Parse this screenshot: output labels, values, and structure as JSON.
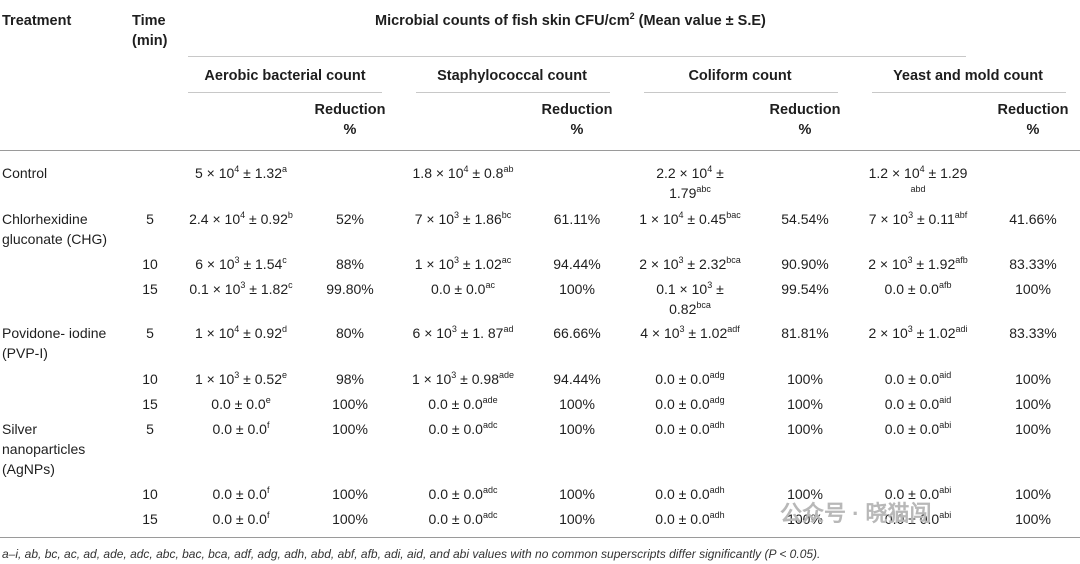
{
  "header": {
    "treatment": "Treatment",
    "time_l1": "Time",
    "time_l2": "(min)",
    "main_pre": "Microbial counts of fish skin CFU/cm",
    "main_sup": "2",
    "main_post": " (Mean value ± S.E)",
    "groups": [
      "Aerobic bacterial count",
      "Staphylococcal count",
      "Coliform count",
      "Yeast and mold count"
    ],
    "reduction_l1": "Reduction",
    "reduction_l2": "%"
  },
  "treatments": {
    "control": "Control",
    "chg_l1": "Chlorhexidine",
    "chg_l2": "gluconate (CHG)",
    "pvp_l1": "Povidone- iodine",
    "pvp_l2": "(PVP-I)",
    "ag_l1": "Silver",
    "ag_l2": "nanoparticles",
    "ag_l3": "(AgNPs)"
  },
  "rows": [
    {
      "time": "",
      "cells": [
        {
          "v": "5 × 10",
          "e": "4",
          "r": " ± 1.32",
          "s": "a",
          "red": ""
        },
        {
          "v": "1.8 × 10",
          "e": "4",
          "r": " ± 0.8",
          "s": "ab",
          "red": ""
        },
        {
          "v": "2.2 × 10",
          "e": "4",
          "r": " ±",
          "s": "",
          "red": "",
          "l2": "1.79",
          "s2": "abc"
        },
        {
          "v": "1.2 × 10",
          "e": "4",
          "r": " ± 1.29",
          "s": "",
          "red": "",
          "l2": "",
          "s2": "abd"
        }
      ]
    },
    {
      "time": "5",
      "cells": [
        {
          "v": "2.4 × 10",
          "e": "4",
          "r": " ± 0.92",
          "s": "b",
          "red": "52%"
        },
        {
          "v": "7 × 10",
          "e": "3",
          "r": " ± 1.86",
          "s": "bc",
          "red": "61.11%"
        },
        {
          "v": "1 × 10",
          "e": "4",
          "r": " ± 0.45",
          "s": "bac",
          "red": "54.54%"
        },
        {
          "v": "7 × 10",
          "e": "3",
          "r": " ± 0.11",
          "s": "abf",
          "red": "41.66%"
        }
      ]
    },
    {
      "time": "10",
      "cells": [
        {
          "v": "6 × 10",
          "e": "3",
          "r": " ± 1.54",
          "s": "c",
          "red": "88%"
        },
        {
          "v": "1 × 10",
          "e": "3",
          "r": " ± 1.02",
          "s": "ac",
          "red": "94.44%"
        },
        {
          "v": "2 × 10",
          "e": "3",
          "r": " ± 2.32",
          "s": "bca",
          "red": "90.90%"
        },
        {
          "v": "2 × 10",
          "e": "3",
          "r": " ± 1.92",
          "s": "afb",
          "red": "83.33%"
        }
      ]
    },
    {
      "time": "15",
      "cells": [
        {
          "v": "0.1 × 10",
          "e": "3",
          "r": " ± 1.82",
          "s": "c",
          "red": "99.80%"
        },
        {
          "v": "0.0 ± 0.0",
          "e": "",
          "r": "",
          "s": "ac",
          "red": "100%"
        },
        {
          "v": "0.1 × 10",
          "e": "3",
          "r": " ±",
          "s": "",
          "red": "99.54%",
          "l2": "0.82",
          "s2": "bca"
        },
        {
          "v": "0.0 ± 0.0",
          "e": "",
          "r": "",
          "s": "afb",
          "red": "100%"
        }
      ]
    },
    {
      "time": "5",
      "cells": [
        {
          "v": "1 × 10",
          "e": "4",
          "r": " ± 0.92",
          "s": "d",
          "red": "80%"
        },
        {
          "v": "6 × 10",
          "e": "3",
          "r": " ± 1. 87",
          "s": "ad",
          "red": "66.66%"
        },
        {
          "v": "4 × 10",
          "e": "3",
          "r": " ± 1.02",
          "s": "adf",
          "red": "81.81%"
        },
        {
          "v": "2 × 10",
          "e": "3",
          "r": " ± 1.02",
          "s": "adi",
          "red": "83.33%"
        }
      ]
    },
    {
      "time": "10",
      "cells": [
        {
          "v": "1 × 10",
          "e": "3",
          "r": " ± 0.52",
          "s": "e",
          "red": "98%"
        },
        {
          "v": "1 × 10",
          "e": "3",
          "r": " ± 0.98",
          "s": "ade",
          "red": "94.44%"
        },
        {
          "v": "0.0 ± 0.0",
          "e": "",
          "r": "",
          "s": "adg",
          "red": "100%"
        },
        {
          "v": "0.0 ± 0.0",
          "e": "",
          "r": "",
          "s": "aid",
          "red": "100%"
        }
      ]
    },
    {
      "time": "15",
      "cells": [
        {
          "v": "0.0 ± 0.0",
          "e": "",
          "r": "",
          "s": "e",
          "red": "100%"
        },
        {
          "v": "0.0 ± 0.0",
          "e": "",
          "r": "",
          "s": "ade",
          "red": "100%"
        },
        {
          "v": "0.0 ± 0.0",
          "e": "",
          "r": "",
          "s": "adg",
          "red": "100%"
        },
        {
          "v": "0.0 ± 0.0",
          "e": "",
          "r": "",
          "s": "aid",
          "red": "100%"
        }
      ]
    },
    {
      "time": "5",
      "cells": [
        {
          "v": "0.0 ± 0.0",
          "e": "",
          "r": "",
          "s": "f",
          "red": "100%"
        },
        {
          "v": "0.0 ± 0.0",
          "e": "",
          "r": "",
          "s": "adc",
          "red": "100%"
        },
        {
          "v": "0.0 ± 0.0",
          "e": "",
          "r": "",
          "s": "adh",
          "red": "100%"
        },
        {
          "v": "0.0 ± 0.0",
          "e": "",
          "r": "",
          "s": "abi",
          "red": "100%"
        }
      ]
    },
    {
      "time": "10",
      "cells": [
        {
          "v": "0.0 ± 0.0",
          "e": "",
          "r": "",
          "s": "f",
          "red": "100%"
        },
        {
          "v": "0.0 ± 0.0",
          "e": "",
          "r": "",
          "s": "adc",
          "red": "100%"
        },
        {
          "v": "0.0 ± 0.0",
          "e": "",
          "r": "",
          "s": "adh",
          "red": "100%"
        },
        {
          "v": "0.0 ± 0.0",
          "e": "",
          "r": "",
          "s": "abi",
          "red": "100%"
        }
      ]
    },
    {
      "time": "15",
      "cells": [
        {
          "v": "0.0 ± 0.0",
          "e": "",
          "r": "",
          "s": "f",
          "red": "100%"
        },
        {
          "v": "0.0 ± 0.0",
          "e": "",
          "r": "",
          "s": "adc",
          "red": "100%"
        },
        {
          "v": "0.0 ± 0.0",
          "e": "",
          "r": "",
          "s": "adh",
          "red": "100%"
        },
        {
          "v": "0.0 ± 0.0",
          "e": "",
          "r": "",
          "s": "abi",
          "red": "100%"
        }
      ]
    }
  ],
  "footnote": "a–i, ab, bc, ac, ad, ade, adc, abc, bac, bca, adf, adg, adh, abd, abf, afb, adi, aid, and abi values with no common superscripts differ significantly (P < 0.05).",
  "watermark": "公众号 · 晓猫闯"
}
